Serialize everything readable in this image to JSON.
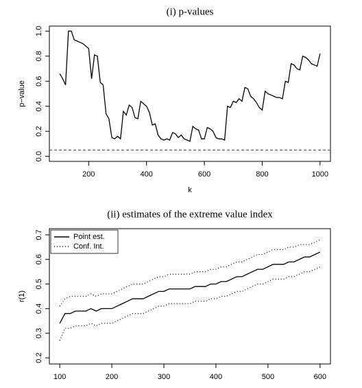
{
  "chart_data": [
    {
      "type": "line",
      "title": "(i) p-values",
      "xlabel": "k",
      "ylabel": "p−value",
      "x": [
        100,
        110,
        120,
        130,
        140,
        150,
        160,
        170,
        180,
        190,
        200,
        210,
        220,
        230,
        240,
        250,
        260,
        270,
        280,
        290,
        300,
        310,
        320,
        330,
        340,
        350,
        360,
        370,
        380,
        390,
        400,
        410,
        420,
        430,
        440,
        450,
        460,
        470,
        480,
        490,
        500,
        510,
        520,
        530,
        540,
        550,
        560,
        570,
        580,
        590,
        600,
        610,
        620,
        630,
        640,
        650,
        660,
        670,
        680,
        690,
        700,
        710,
        720,
        730,
        740,
        750,
        760,
        770,
        780,
        790,
        800,
        810,
        820,
        830,
        840,
        850,
        860,
        870,
        880,
        890,
        900,
        910,
        920,
        930,
        940,
        950,
        960,
        970,
        980,
        990,
        1000
      ],
      "series": [
        {
          "color": "#000000",
          "linestyle": "solid",
          "values": [
            0.66,
            0.62,
            0.57,
            1.0,
            1.0,
            0.93,
            0.92,
            0.91,
            0.9,
            0.88,
            0.86,
            0.62,
            0.81,
            0.8,
            0.59,
            0.57,
            0.34,
            0.3,
            0.15,
            0.14,
            0.16,
            0.14,
            0.36,
            0.33,
            0.41,
            0.39,
            0.31,
            0.3,
            0.44,
            0.42,
            0.4,
            0.35,
            0.25,
            0.26,
            0.17,
            0.14,
            0.13,
            0.14,
            0.13,
            0.19,
            0.18,
            0.15,
            0.17,
            0.14,
            0.13,
            0.12,
            0.24,
            0.22,
            0.21,
            0.14,
            0.14,
            0.23,
            0.22,
            0.2,
            0.15,
            0.14,
            0.14,
            0.13,
            0.4,
            0.39,
            0.44,
            0.43,
            0.46,
            0.44,
            0.55,
            0.54,
            0.48,
            0.46,
            0.43,
            0.39,
            0.37,
            0.52,
            0.5,
            0.49,
            0.48,
            0.47,
            0.47,
            0.46,
            0.6,
            0.59,
            0.74,
            0.73,
            0.7,
            0.69,
            0.8,
            0.79,
            0.77,
            0.74,
            0.73,
            0.72,
            0.82
          ]
        }
      ],
      "hline": {
        "value": 0.05,
        "color": "#555555",
        "linestyle": "dashed"
      },
      "xlim": [
        64,
        1036
      ],
      "xticks": [
        200,
        400,
        600,
        800,
        1000
      ],
      "ylim": [
        -0.04,
        1.04
      ],
      "yticks": [
        {
          "value": 0,
          "label": "0.0"
        },
        0.2,
        0.4,
        0.6,
        0.8,
        {
          "value": 1,
          "label": "1.0"
        }
      ]
    },
    {
      "type": "line",
      "title": "(ii) estimates of the extreme value index",
      "ylabel": "r(1)",
      "x": [
        100,
        110,
        120,
        130,
        140,
        150,
        160,
        170,
        180,
        190,
        200,
        210,
        220,
        230,
        240,
        250,
        260,
        270,
        280,
        290,
        300,
        310,
        320,
        330,
        340,
        350,
        360,
        370,
        380,
        390,
        400,
        410,
        420,
        430,
        440,
        450,
        460,
        470,
        480,
        490,
        500,
        510,
        520,
        530,
        540,
        550,
        560,
        570,
        580,
        590,
        600
      ],
      "series": [
        {
          "name": "Point est.",
          "color": "#000000",
          "linestyle": "solid",
          "values": [
            0.34,
            0.38,
            0.38,
            0.39,
            0.39,
            0.39,
            0.4,
            0.39,
            0.4,
            0.4,
            0.4,
            0.41,
            0.42,
            0.43,
            0.44,
            0.44,
            0.44,
            0.45,
            0.46,
            0.47,
            0.47,
            0.48,
            0.48,
            0.48,
            0.48,
            0.48,
            0.49,
            0.49,
            0.49,
            0.5,
            0.5,
            0.51,
            0.51,
            0.52,
            0.53,
            0.53,
            0.54,
            0.55,
            0.56,
            0.56,
            0.57,
            0.58,
            0.58,
            0.58,
            0.59,
            0.59,
            0.6,
            0.61,
            0.61,
            0.62,
            0.63
          ]
        },
        {
          "name": "Conf. Int.",
          "color": "#000000",
          "linestyle": "dotted",
          "upper": [
            0.41,
            0.44,
            0.45,
            0.45,
            0.45,
            0.45,
            0.46,
            0.45,
            0.46,
            0.46,
            0.46,
            0.47,
            0.48,
            0.49,
            0.5,
            0.5,
            0.5,
            0.51,
            0.52,
            0.53,
            0.53,
            0.54,
            0.54,
            0.54,
            0.54,
            0.54,
            0.55,
            0.55,
            0.55,
            0.56,
            0.56,
            0.57,
            0.57,
            0.58,
            0.59,
            0.59,
            0.6,
            0.61,
            0.62,
            0.62,
            0.63,
            0.64,
            0.64,
            0.64,
            0.65,
            0.65,
            0.66,
            0.66,
            0.66,
            0.67,
            0.68
          ],
          "lower": [
            0.27,
            0.32,
            0.32,
            0.33,
            0.33,
            0.33,
            0.34,
            0.33,
            0.34,
            0.34,
            0.34,
            0.35,
            0.36,
            0.37,
            0.38,
            0.38,
            0.38,
            0.39,
            0.4,
            0.41,
            0.41,
            0.42,
            0.42,
            0.42,
            0.42,
            0.42,
            0.43,
            0.43,
            0.43,
            0.44,
            0.44,
            0.45,
            0.45,
            0.46,
            0.47,
            0.47,
            0.48,
            0.49,
            0.5,
            0.5,
            0.51,
            0.52,
            0.52,
            0.52,
            0.53,
            0.53,
            0.54,
            0.55,
            0.55,
            0.56,
            0.57
          ]
        }
      ],
      "legend": "topleft",
      "xlim": [
        80,
        620
      ],
      "xticks": [
        100,
        200,
        300,
        400,
        500,
        600
      ],
      "ylim": [
        0.175,
        0.725
      ],
      "yticks": [
        0.2,
        0.3,
        0.4,
        0.5,
        0.6,
        0.7
      ]
    }
  ]
}
